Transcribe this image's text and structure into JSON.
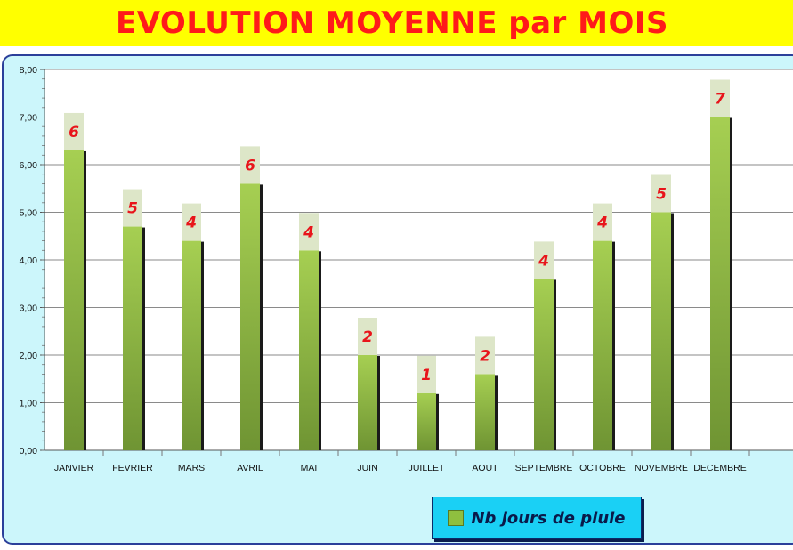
{
  "title": "EVOLUTION MOYENNE par MOIS",
  "legend": {
    "label": "Nb jours de pluie"
  },
  "colors": {
    "title_bg": "#ffff00",
    "title_text": "#ff1a1a",
    "plot_bg": "#ffffff",
    "frame_bg": "#ccf6fb",
    "bar_top": "#a6cf52",
    "bar_bottom": "#6f9433",
    "label_box": "#dde6c8",
    "label_text": "#e8151b",
    "legend_bg": "#1ad0f5"
  },
  "chart_data": {
    "type": "bar",
    "title": "EVOLUTION MOYENNE par MOIS",
    "xlabel": "",
    "ylabel": "",
    "ylim": [
      0,
      8
    ],
    "yticks": [
      "0,00",
      "1,00",
      "2,00",
      "3,00",
      "4,00",
      "5,00",
      "6,00",
      "7,00",
      "8,00"
    ],
    "grid": true,
    "legend_position": "bottom",
    "categories": [
      "JANVIER",
      "FEVRIER",
      "MARS",
      "AVRIL",
      "MAI",
      "JUIN",
      "JUILLET",
      "AOUT",
      "SEPTEMBRE",
      "OCTOBRE",
      "NOVEMBRE",
      "DECEMBRE"
    ],
    "series": [
      {
        "name": "Nb jours de pluie",
        "values": [
          6.3,
          4.7,
          4.4,
          5.6,
          4.2,
          2.0,
          1.2,
          1.6,
          3.6,
          4.4,
          5.0,
          7.0
        ],
        "data_labels": [
          "6",
          "5",
          "4",
          "6",
          "4",
          "2",
          "1",
          "2",
          "4",
          "4",
          "5",
          "7"
        ]
      }
    ]
  }
}
